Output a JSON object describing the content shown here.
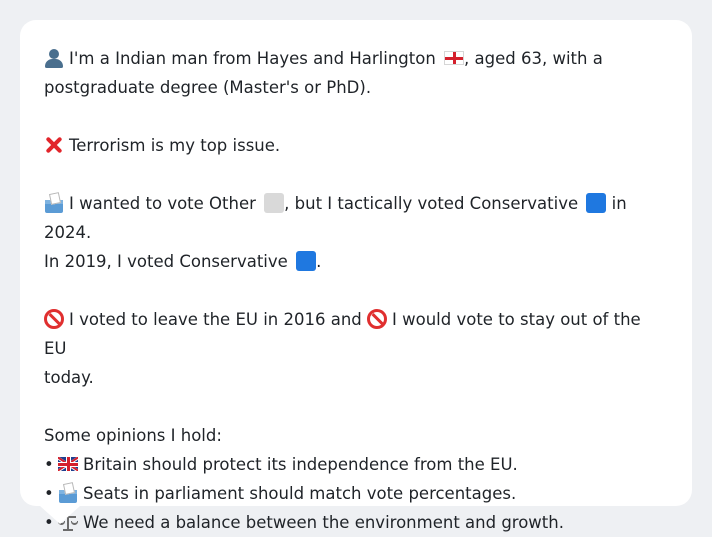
{
  "profile": {
    "line1": "I'm a Indian man from Hayes and Harlington",
    "line1_tail": ", aged 63, with a",
    "line2": "postgraduate degree (Master's or PhD)."
  },
  "top_issue": {
    "text": "Terrorism is my top issue."
  },
  "vote": {
    "line1_a": "I wanted to vote Other",
    "line1_b": ", but I tactically voted Conservative",
    "line1_c": "in 2024.",
    "line2_a": "In 2019, I voted Conservative",
    "line2_b": "."
  },
  "eu": {
    "line1_a": "I voted to leave the EU in 2016 and",
    "line1_b": "I would vote to stay out of the EU",
    "line2": "today."
  },
  "opinions": {
    "heading": "Some opinions I hold:",
    "bullet": "•",
    "items": [
      {
        "icon": "uk-flag-icon",
        "text": "Britain should protect its independence from the EU."
      },
      {
        "icon": "ballot-box-icon",
        "text": "Seats in parliament should match vote percentages."
      },
      {
        "icon": "scale-icon",
        "text": "We need a balance between the environment and growth."
      }
    ]
  },
  "colors": {
    "background": "#eef0f3",
    "card": "#ffffff",
    "text": "#1f2328",
    "conservative_blue": "#1f78e0",
    "other_grey": "#d9d9d9"
  }
}
